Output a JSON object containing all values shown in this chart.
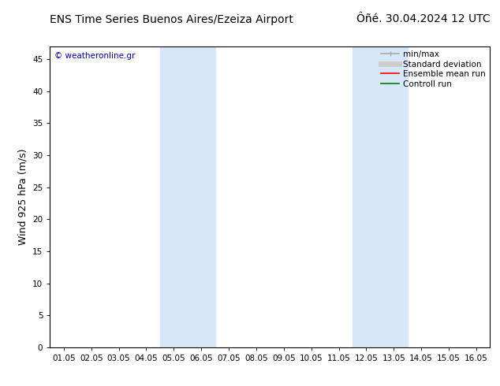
{
  "title_left": "ENS Time Series Buenos Aires/Ezeiza Airport",
  "title_right": "Ôñé. 30.04.2024 12 UTC",
  "ylabel": "Wind 925 hPa (m/s)",
  "watermark": "© weatheronline.gr",
  "xtick_labels": [
    "01.05",
    "02.05",
    "03.05",
    "04.05",
    "05.05",
    "06.05",
    "07.05",
    "08.05",
    "09.05",
    "10.05",
    "11.05",
    "12.05",
    "13.05",
    "14.05",
    "15.05",
    "16.05"
  ],
  "xtick_positions": [
    0,
    1,
    2,
    3,
    4,
    5,
    6,
    7,
    8,
    9,
    10,
    11,
    12,
    13,
    14,
    15
  ],
  "ytick_labels": [
    "0",
    "5",
    "10",
    "15",
    "20",
    "25",
    "30",
    "35",
    "40",
    "45"
  ],
  "ytick_values": [
    0,
    5,
    10,
    15,
    20,
    25,
    30,
    35,
    40,
    45
  ],
  "ylim": [
    0,
    47
  ],
  "xlim": [
    -0.5,
    15.5
  ],
  "shaded_regions": [
    {
      "xmin": 3.5,
      "xmax": 5.5,
      "color": "#d6e8f7"
    },
    {
      "xmin": 10.5,
      "xmax": 12.5,
      "color": "#d6e8f7"
    }
  ],
  "legend_entries": [
    {
      "label": "min/max",
      "color": "#aaaaaa",
      "lw": 1.2,
      "ls": "-",
      "marker": "|"
    },
    {
      "label": "Standard deviation",
      "color": "#cccccc",
      "lw": 5,
      "ls": "-"
    },
    {
      "label": "Ensemble mean run",
      "color": "#ff0000",
      "lw": 1.2,
      "ls": "-"
    },
    {
      "label": "Controll run",
      "color": "#008000",
      "lw": 1.2,
      "ls": "-"
    }
  ],
  "bg_color": "#ffffff",
  "spine_color": "#000000",
  "tick_color": "#000000",
  "watermark_color": "#0000cc",
  "title_fontsize": 10,
  "axis_fontsize": 9,
  "tick_fontsize": 7.5,
  "legend_fontsize": 7.5
}
